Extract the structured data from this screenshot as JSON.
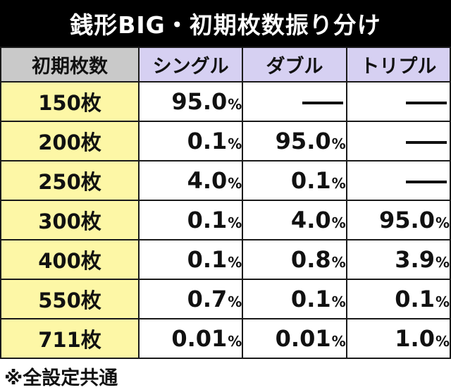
{
  "title": "銭形BIG・初期枚数振り分け",
  "header": {
    "corner": "初期枚数",
    "columns": [
      "シングル",
      "ダブル",
      "トリプル"
    ]
  },
  "percent_sign": "%",
  "rows": [
    {
      "label": "150枚",
      "values": [
        "95.0",
        "—",
        "—"
      ]
    },
    {
      "label": "200枚",
      "values": [
        "0.1",
        "95.0",
        "—"
      ]
    },
    {
      "label": "250枚",
      "values": [
        "4.0",
        "0.1",
        "—"
      ]
    },
    {
      "label": "300枚",
      "values": [
        "0.1",
        "4.0",
        "95.0"
      ]
    },
    {
      "label": "400枚",
      "values": [
        "0.1",
        "0.8",
        "3.9"
      ]
    },
    {
      "label": "550枚",
      "values": [
        "0.7",
        "0.1",
        "0.1"
      ]
    },
    {
      "label": "711枚",
      "values": [
        "0.01",
        "0.01",
        "1.0"
      ]
    }
  ],
  "footnote": "※全設定共通",
  "colors": {
    "title_bg": "#000000",
    "corner_bg": "#c9c9c9",
    "column_header_bg": "#d6d0f2",
    "row_header_bg": "#fdf7a6"
  }
}
